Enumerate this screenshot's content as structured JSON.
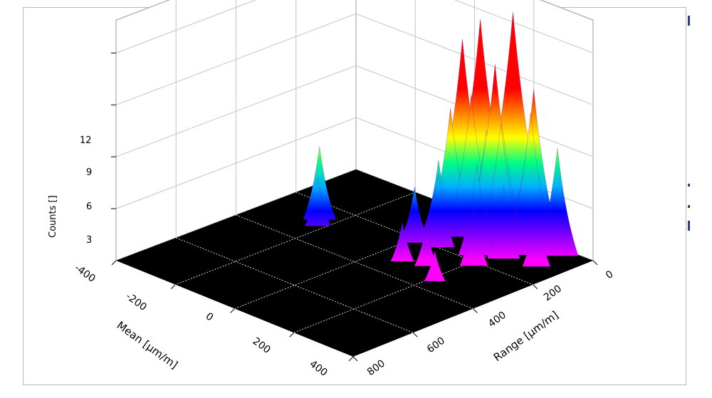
{
  "chart_data": {
    "type": "surface3d",
    "title": "",
    "xlabel": "Mean [µm/m]",
    "ylabel": "Range [µm/m]",
    "zlabel": "Counts []",
    "x_ticks": [
      "-400",
      "-200",
      "0",
      "200",
      "400"
    ],
    "y_ticks": [
      "0",
      "200",
      "400",
      "600",
      "800"
    ],
    "z_ticks": [
      "3",
      "6",
      "9",
      "12"
    ],
    "xlim": [
      -400,
      400
    ],
    "ylim": [
      0,
      800
    ],
    "zlim": [
      0,
      14
    ],
    "grid": true,
    "floor_color": "#000000",
    "colormap": "rainbow",
    "colormap_stops": [
      "#ff00ff",
      "#8000ff",
      "#0000ff",
      "#00b0ff",
      "#00ff80",
      "#ffff00",
      "#ff8000",
      "#ff0000"
    ],
    "peaks": [
      {
        "x": -260,
        "y": 260,
        "z": 4
      },
      {
        "x": -235,
        "y": 290,
        "z": 2.5
      },
      {
        "x": 0,
        "y": 120,
        "z": 4
      },
      {
        "x": 20,
        "y": 100,
        "z": 7
      },
      {
        "x": 40,
        "y": 80,
        "z": 11
      },
      {
        "x": 70,
        "y": 80,
        "z": 8
      },
      {
        "x": 100,
        "y": 60,
        "z": 6
      },
      {
        "x": 110,
        "y": 30,
        "z": 6
      },
      {
        "x": 60,
        "y": 40,
        "z": 12
      },
      {
        "x": 160,
        "y": 30,
        "z": 13
      },
      {
        "x": 130,
        "y": 60,
        "z": 10
      },
      {
        "x": 230,
        "y": 30,
        "z": 9
      },
      {
        "x": 250,
        "y": 60,
        "z": 8
      },
      {
        "x": 300,
        "y": 20,
        "z": 6
      },
      {
        "x": 170,
        "y": 80,
        "z": 7
      },
      {
        "x": 160,
        "y": 150,
        "z": 5
      },
      {
        "x": 200,
        "y": 200,
        "z": 3
      },
      {
        "x": 60,
        "y": 180,
        "z": 4
      },
      {
        "x": 0,
        "y": 200,
        "z": 3
      },
      {
        "x": 60,
        "y": 300,
        "z": 2
      },
      {
        "x": 120,
        "y": 280,
        "z": 2
      },
      {
        "x": 220,
        "y": 120,
        "z": 4
      },
      {
        "x": 310,
        "y": 100,
        "z": 3
      },
      {
        "x": 200,
        "y": 330,
        "z": 1.5
      },
      {
        "x": -20,
        "y": 50,
        "z": 3
      },
      {
        "x": -40,
        "y": 160,
        "z": 2
      }
    ]
  }
}
